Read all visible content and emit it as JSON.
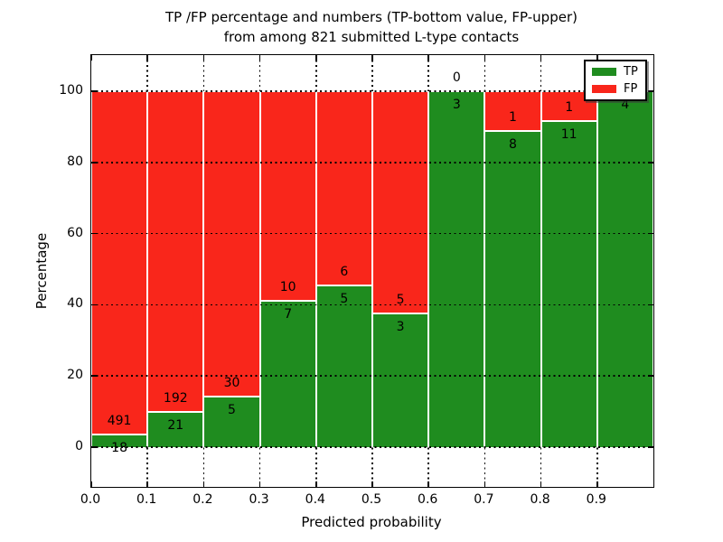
{
  "chart_data": {
    "type": "bar",
    "stacked": true,
    "normalized_to_percent": true,
    "title_line1": "TP /FP percentage and numbers (TP-bottom value, FP-upper)",
    "title_line2": "from among 821 submitted L-type contacts",
    "xlabel": "Predicted probability",
    "ylabel": "Percentage",
    "total_contacts": 821,
    "categories": [
      "0.0-0.1",
      "0.1-0.2",
      "0.2-0.3",
      "0.3-0.4",
      "0.4-0.5",
      "0.5-0.6",
      "0.6-0.7",
      "0.7-0.8",
      "0.8-0.9",
      "0.9-1.0"
    ],
    "series": [
      {
        "name": "TP",
        "color": "#1f8c1f",
        "values": [
          18,
          21,
          5,
          7,
          5,
          3,
          3,
          8,
          11,
          4
        ]
      },
      {
        "name": "FP",
        "color": "#f9261b",
        "values": [
          491,
          192,
          30,
          10,
          6,
          5,
          0,
          1,
          1,
          0
        ]
      }
    ],
    "tp_percentages": [
      3.54,
      9.86,
      14.29,
      41.18,
      45.45,
      37.5,
      100.0,
      88.89,
      91.67,
      100.0
    ],
    "x_tick_labels": [
      "0.0",
      "0.1",
      "0.2",
      "0.3",
      "0.4",
      "0.5",
      "0.6",
      "0.7",
      "0.8",
      "0.9"
    ],
    "y_tick_labels": [
      "0",
      "20",
      "40",
      "60",
      "80",
      "100"
    ],
    "y_tick_values": [
      0,
      20,
      40,
      60,
      80,
      100
    ],
    "xlim": [
      0.0,
      1.0
    ],
    "ylim": [
      -11.2,
      110.2
    ],
    "grid": "dotted-black",
    "bar_edge_color": "#ffffff",
    "legend": {
      "position": "upper-right",
      "entries": [
        {
          "label": "TP",
          "color": "#1f8c1f"
        },
        {
          "label": "FP",
          "color": "#f9261b"
        }
      ]
    }
  }
}
